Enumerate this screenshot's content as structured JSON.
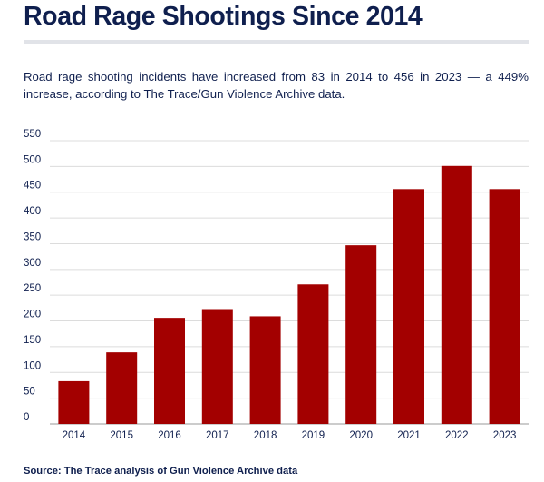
{
  "header": {
    "title": "Road Rage Shootings Since 2014",
    "subtitle": "Road rage shooting incidents have increased from 83 in 2014 to 456 in 2023 — a 449% increase, according to The Trace/Gun Violence Archive data."
  },
  "footer": {
    "source": "Source: The Trace analysis of Gun Violence Archive data"
  },
  "colors": {
    "bar": "#a30000",
    "text": "#0f1f4e",
    "grid": "#dcdcdc"
  },
  "chart_data": {
    "type": "bar",
    "categories": [
      "2014",
      "2015",
      "2016",
      "2017",
      "2018",
      "2019",
      "2020",
      "2021",
      "2022",
      "2023"
    ],
    "values": [
      83,
      139,
      206,
      223,
      209,
      271,
      347,
      456,
      501,
      456
    ],
    "ylim": [
      0,
      550
    ],
    "yticks": [
      0,
      50,
      100,
      150,
      200,
      250,
      300,
      350,
      400,
      450,
      500,
      550
    ],
    "grid": true,
    "legend": "none"
  }
}
